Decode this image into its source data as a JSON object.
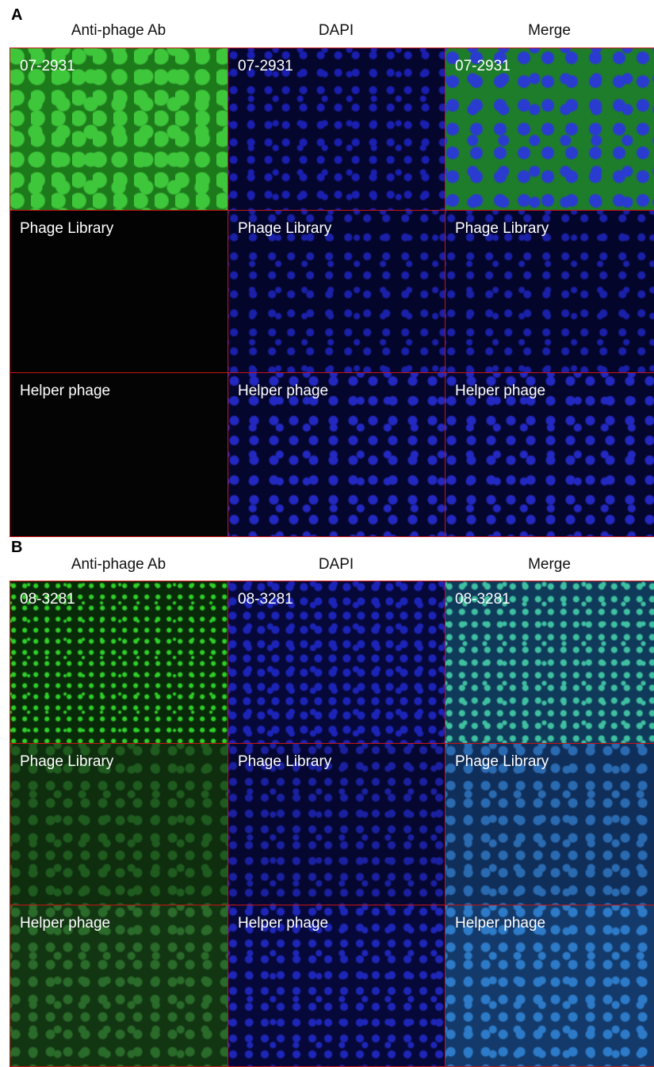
{
  "panels": [
    {
      "letter": "A",
      "columns": [
        "Anti-phage Ab",
        "DAPI",
        "Merge"
      ],
      "rows": [
        [
          "07-2931",
          "07-2931",
          "07-2931"
        ],
        [
          "Phage Library",
          "Phage Library",
          "Phage Library"
        ],
        [
          "Helper phage",
          "Helper phage",
          "Helper phage"
        ]
      ]
    },
    {
      "letter": "B",
      "columns": [
        "Anti-phage Ab",
        "DAPI",
        "Merge"
      ],
      "rows": [
        [
          "08-3281",
          "08-3281",
          "08-3281"
        ],
        [
          "Phage Library",
          "Phage Library",
          "Phage Library"
        ],
        [
          "Helper phage",
          "Helper phage",
          "Helper phage"
        ]
      ]
    }
  ]
}
